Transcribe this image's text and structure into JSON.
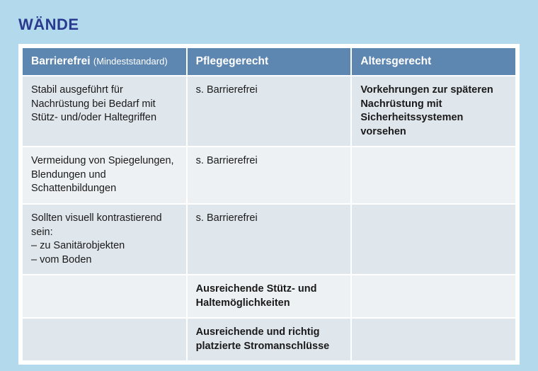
{
  "title": "WÄNDE",
  "columns": [
    {
      "label": "Barrierefrei",
      "sublabel": "(Mindeststandard)"
    },
    {
      "label": "Pflegegerecht",
      "sublabel": ""
    },
    {
      "label": "Altersgerecht",
      "sublabel": ""
    }
  ],
  "rows": [
    {
      "parity": "even",
      "cells": [
        {
          "text": "Stabil ausgeführt für Nachrüstung bei Bedarf mit Stütz- und/oder Haltegriffen",
          "bold": false
        },
        {
          "text": "s. Barrierefrei",
          "bold": false
        },
        {
          "text": "Vorkehrungen zur späteren Nachrüstung mit Sicherheitssystemen vorsehen",
          "bold": true
        }
      ]
    },
    {
      "parity": "odd",
      "cells": [
        {
          "text": "Vermeidung von Spiegelungen, Blendungen und Schattenbildungen",
          "bold": false
        },
        {
          "text": "s. Barrierefrei",
          "bold": false
        },
        {
          "text": "",
          "bold": false
        }
      ]
    },
    {
      "parity": "even",
      "cells": [
        {
          "text": "Sollten visuell kontrastierend sein:\n– zu Sanitärobjekten\n– vom Boden",
          "bold": false
        },
        {
          "text": "s. Barrierefrei",
          "bold": false
        },
        {
          "text": "",
          "bold": false
        }
      ]
    },
    {
      "parity": "odd",
      "cells": [
        {
          "text": "",
          "bold": false
        },
        {
          "text": "Ausreichende Stütz- und Haltemöglichkeiten",
          "bold": true
        },
        {
          "text": "",
          "bold": false
        }
      ]
    },
    {
      "parity": "even",
      "cells": [
        {
          "text": "",
          "bold": false
        },
        {
          "text": "Ausreichende und richtig platzierte Stromanschlüsse",
          "bold": true
        },
        {
          "text": "",
          "bold": false
        }
      ]
    }
  ],
  "colors": {
    "page_bg": "#b3d9ed",
    "header_bg": "#5d86b0",
    "header_text": "#ffffff",
    "title_color": "#2a3b8f",
    "row_even": "#dfe6ec",
    "row_odd": "#edf1f4",
    "cell_border": "#ffffff",
    "body_text": "#1a1a1a"
  },
  "fonts": {
    "title_size_pt": 17,
    "header_size_pt": 12,
    "body_size_pt": 11
  },
  "layout": {
    "column_widths_pct": [
      33.4,
      33.3,
      33.3
    ]
  }
}
